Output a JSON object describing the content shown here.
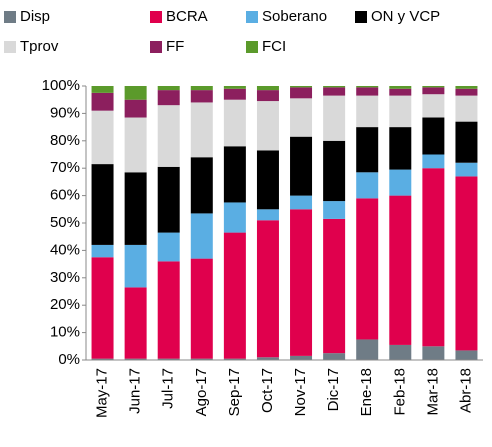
{
  "chart_data": {
    "type": "stacked_bar",
    "categories": [
      "May-17",
      "Jun-17",
      "Jul-17",
      "Ago-17",
      "Sep-17",
      "Oct-17",
      "Nov-17",
      "Dic-17",
      "Ene-18",
      "Feb-18",
      "Mar-18",
      "Abr-18"
    ],
    "series": [
      {
        "name": "Disp",
        "color": "#6f7c86",
        "values": [
          0.5,
          0.5,
          0.5,
          0.5,
          0.5,
          1,
          1.5,
          2.5,
          7.5,
          5.5,
          5,
          3.5
        ]
      },
      {
        "name": "BCRA",
        "color": "#e0004d",
        "values": [
          37,
          26,
          35.5,
          36.5,
          46,
          50,
          53.5,
          49,
          51.5,
          54.5,
          65,
          63.5
        ]
      },
      {
        "name": "Soberano",
        "color": "#5aaee3",
        "values": [
          4.5,
          15.5,
          10.5,
          16.5,
          11,
          4,
          5,
          6.5,
          9.5,
          9.5,
          5,
          5
        ]
      },
      {
        "name": "ON y VCP",
        "color": "#000000",
        "values": [
          29.5,
          26.5,
          24,
          20.5,
          20.5,
          21.5,
          21.5,
          22,
          16.5,
          15.5,
          13.5,
          15
        ]
      },
      {
        "name": "Tprov",
        "color": "#d9d9d9",
        "values": [
          19.5,
          20,
          22.5,
          20,
          17,
          18,
          14,
          16.5,
          11.5,
          11.5,
          8.5,
          9.5
        ]
      },
      {
        "name": "FF",
        "color": "#8c1f5e",
        "values": [
          6.5,
          6.5,
          5.5,
          4.5,
          4,
          4,
          4,
          3,
          3,
          2.5,
          2.5,
          2.5
        ]
      },
      {
        "name": "FCI",
        "color": "#5b9a2b",
        "values": [
          2.5,
          5,
          1.5,
          1.5,
          1,
          1.5,
          0.5,
          0.5,
          0.5,
          1,
          0.5,
          1
        ]
      }
    ],
    "ylim": [
      0,
      100
    ],
    "yticks": [
      {
        "value": 0,
        "label": "0%"
      },
      {
        "value": 10,
        "label": "10%"
      },
      {
        "value": 20,
        "label": "20%"
      },
      {
        "value": 30,
        "label": "30%"
      },
      {
        "value": 40,
        "label": "40%"
      },
      {
        "value": 50,
        "label": "50%"
      },
      {
        "value": 60,
        "label": "60%"
      },
      {
        "value": 70,
        "label": "70%"
      },
      {
        "value": 80,
        "label": "80%"
      },
      {
        "value": 90,
        "label": "90%"
      },
      {
        "value": 100,
        "label": "100%"
      }
    ],
    "grid": false
  }
}
